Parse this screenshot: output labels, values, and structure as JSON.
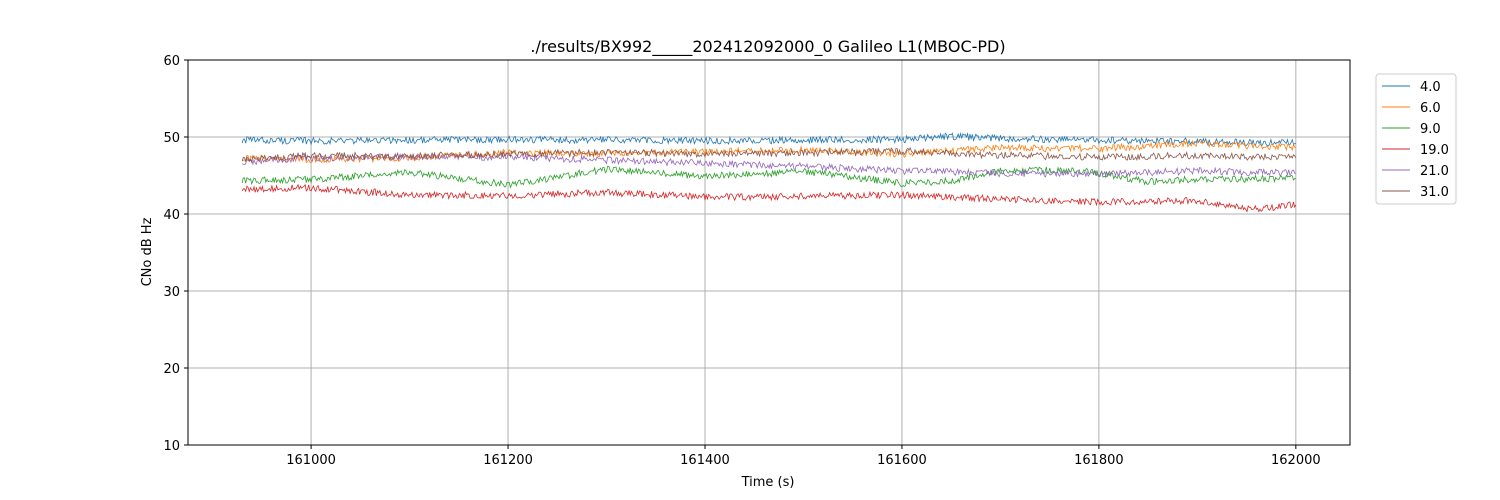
{
  "chart_data": {
    "type": "line",
    "title": "./results/BX992_____202412092000_0 Galileo L1(MBOC-PD)",
    "xlabel": "Time (s)",
    "ylabel": "CNo dB Hz",
    "xlim": [
      160875,
      162055
    ],
    "ylim": [
      10,
      60
    ],
    "xticks": [
      161000,
      161200,
      161400,
      161600,
      161800,
      162000
    ],
    "yticks": [
      10,
      20,
      30,
      40,
      50,
      60
    ],
    "grid": true,
    "legend_position": "top-right outside",
    "series": [
      {
        "name": "4.0",
        "color": "#1f77b4",
        "x": [
          160930,
          161000,
          161100,
          161200,
          161300,
          161400,
          161500,
          161600,
          161650,
          161700,
          161800,
          161900,
          162000
        ],
        "y": [
          49.6,
          49.5,
          49.6,
          49.7,
          49.6,
          49.5,
          49.6,
          49.7,
          50.1,
          49.8,
          49.6,
          49.4,
          49.2
        ]
      },
      {
        "name": "6.0",
        "color": "#ff7f0e",
        "x": [
          160930,
          161000,
          161100,
          161200,
          161300,
          161400,
          161500,
          161600,
          161700,
          161800,
          161900,
          162000
        ],
        "y": [
          47.2,
          47.1,
          47.3,
          48.0,
          47.8,
          48.1,
          48.3,
          47.8,
          48.6,
          48.5,
          49.2,
          48.6
        ]
      },
      {
        "name": "9.0",
        "color": "#2ca02c",
        "x": [
          160930,
          161000,
          161100,
          161200,
          161300,
          161400,
          161500,
          161600,
          161650,
          161700,
          161780,
          161850,
          161900,
          162000
        ],
        "y": [
          44.3,
          44.5,
          45.4,
          43.8,
          45.8,
          44.9,
          45.5,
          44.0,
          44.3,
          45.6,
          45.7,
          44.2,
          44.5,
          44.6
        ]
      },
      {
        "name": "19.0",
        "color": "#d62728",
        "x": [
          160930,
          161000,
          161100,
          161200,
          161300,
          161400,
          161500,
          161600,
          161700,
          161800,
          161900,
          161960,
          162000
        ],
        "y": [
          43.2,
          43.4,
          42.5,
          42.4,
          42.8,
          42.2,
          42.3,
          42.5,
          41.9,
          41.6,
          41.7,
          40.6,
          41.2
        ]
      },
      {
        "name": "21.0",
        "color": "#9467bd",
        "x": [
          160930,
          161000,
          161100,
          161200,
          161300,
          161400,
          161500,
          161600,
          161700,
          161800,
          161900,
          162000
        ],
        "y": [
          46.7,
          47.3,
          47.4,
          47.4,
          47.0,
          46.6,
          46.2,
          45.6,
          45.3,
          45.2,
          45.6,
          45.3
        ]
      },
      {
        "name": "31.0",
        "color": "#8c564b",
        "x": [
          160930,
          161000,
          161100,
          161200,
          161300,
          161400,
          161500,
          161600,
          161700,
          161800,
          161900,
          162000
        ],
        "y": [
          47.0,
          47.6,
          47.5,
          47.8,
          48.0,
          47.8,
          47.9,
          48.2,
          47.6,
          47.4,
          47.6,
          47.3
        ]
      }
    ]
  }
}
